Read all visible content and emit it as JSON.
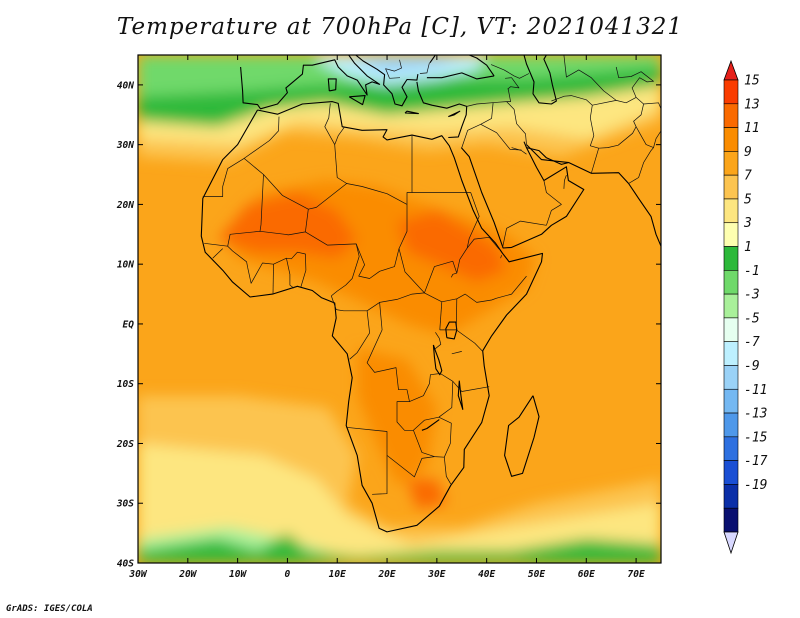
{
  "title": "Temperature at 700hPa [C], VT: 2021041321",
  "credit": "GrADS: IGES/COLA",
  "map": {
    "lon_range": [
      -30,
      75
    ],
    "lat_range": [
      -40,
      45
    ],
    "lon_ticks": [
      {
        "value": -30,
        "label": "30W"
      },
      {
        "value": -20,
        "label": "20W"
      },
      {
        "value": -10,
        "label": "10W"
      },
      {
        "value": 0,
        "label": "0"
      },
      {
        "value": 10,
        "label": "10E"
      },
      {
        "value": 20,
        "label": "20E"
      },
      {
        "value": 30,
        "label": "30E"
      },
      {
        "value": 40,
        "label": "40E"
      },
      {
        "value": 50,
        "label": "50E"
      },
      {
        "value": 60,
        "label": "60E"
      },
      {
        "value": 70,
        "label": "70E"
      }
    ],
    "lat_ticks": [
      {
        "value": 40,
        "label": "40N"
      },
      {
        "value": 30,
        "label": "30N"
      },
      {
        "value": 20,
        "label": "20N"
      },
      {
        "value": 10,
        "label": "10N"
      },
      {
        "value": 0,
        "label": "EQ"
      },
      {
        "value": -10,
        "label": "10S"
      },
      {
        "value": -20,
        "label": "20S"
      },
      {
        "value": -30,
        "label": "30S"
      },
      {
        "value": -40,
        "label": "40S"
      }
    ]
  },
  "colorbar": {
    "levels": [
      15,
      13,
      11,
      9,
      7,
      5,
      3,
      1,
      -1,
      -3,
      -5,
      -7,
      -9,
      -11,
      -13,
      -15,
      -17,
      -19
    ],
    "colors": [
      "#fa3c00",
      "#fa6a00",
      "#fa8c00",
      "#fba51a",
      "#fcc450",
      "#fde680",
      "#feffb0",
      "#2db93a",
      "#6fd96a",
      "#a9f09a",
      "#e6fff0",
      "#bdf0ff",
      "#9ad2f7",
      "#74b8f2",
      "#4e98ea",
      "#2e70e0",
      "#1a4fd4",
      "#0b2fa8",
      "#0a1070"
    ],
    "top_color": "#e6201a",
    "bottom_color": "#d8d8ff"
  }
}
